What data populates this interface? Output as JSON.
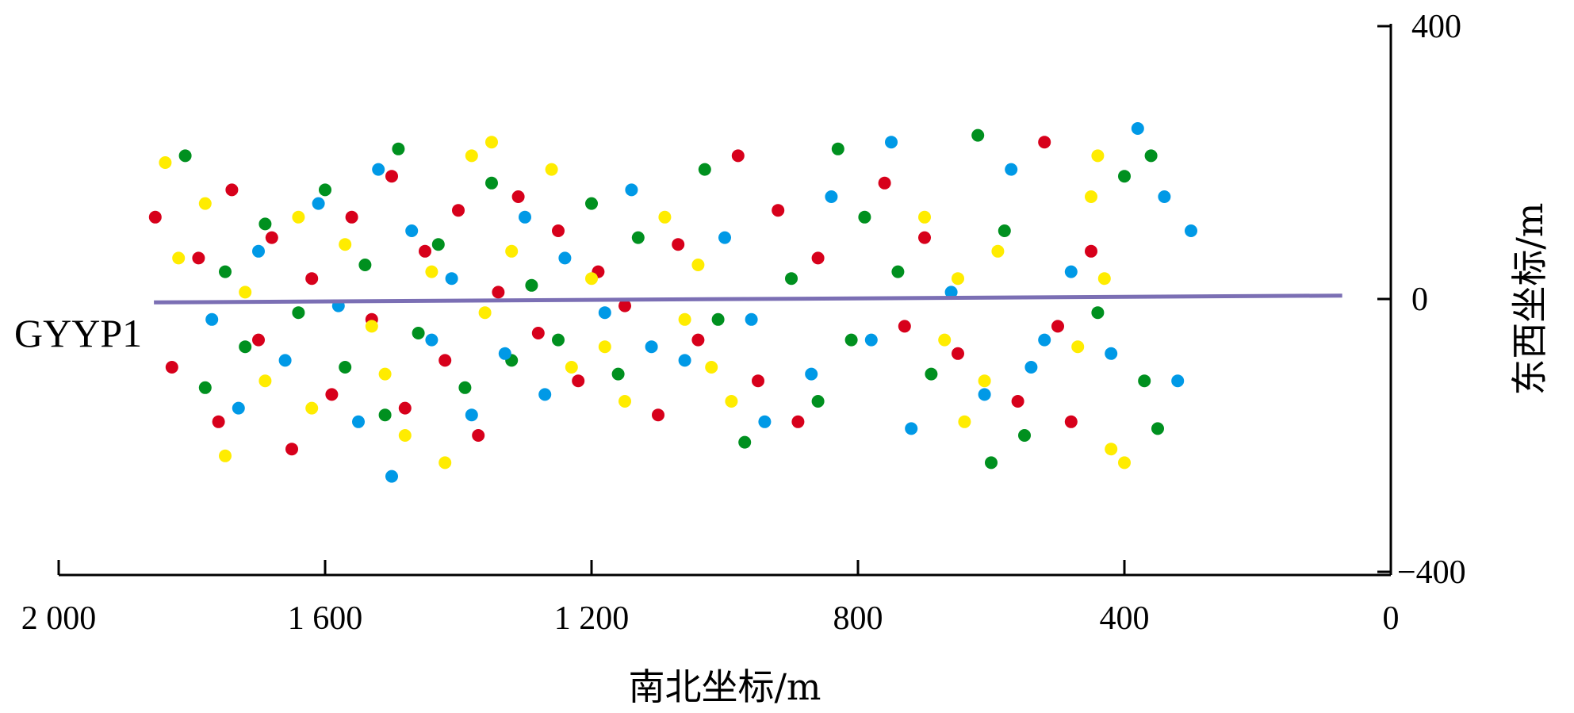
{
  "chart_data": {
    "type": "scatter",
    "title": "",
    "xlabel": "南北坐标/m",
    "ylabel": "东西坐标/m",
    "xlim": [
      2000,
      0
    ],
    "ylim": [
      -400,
      400
    ],
    "x_ticks": [
      "2 000",
      "1 600",
      "1 200",
      "800",
      "400",
      "0"
    ],
    "x_tick_values": [
      2000,
      1600,
      1200,
      800,
      400,
      0
    ],
    "y_ticks": [
      "400",
      "0",
      "−400"
    ],
    "y_tick_values": [
      400,
      0,
      -400
    ],
    "grid": false,
    "well": {
      "label": "GYYP1",
      "color": "#7b6fb4",
      "x": [
        1857,
        73
      ],
      "y": [
        -5,
        5
      ]
    },
    "series": [
      {
        "name": "red",
        "color": "#d7001b",
        "points": [
          [
            1855,
            120
          ],
          [
            1830,
            -100
          ],
          [
            1790,
            60
          ],
          [
            1760,
            -180
          ],
          [
            1740,
            160
          ],
          [
            1700,
            -60
          ],
          [
            1680,
            90
          ],
          [
            1650,
            -220
          ],
          [
            1620,
            30
          ],
          [
            1590,
            -140
          ],
          [
            1560,
            120
          ],
          [
            1530,
            -30
          ],
          [
            1500,
            180
          ],
          [
            1480,
            -160
          ],
          [
            1450,
            70
          ],
          [
            1420,
            -90
          ],
          [
            1400,
            130
          ],
          [
            1370,
            -200
          ],
          [
            1340,
            10
          ],
          [
            1310,
            150
          ],
          [
            1280,
            -50
          ],
          [
            1250,
            100
          ],
          [
            1220,
            -120
          ],
          [
            1190,
            40
          ],
          [
            1150,
            -10
          ],
          [
            1100,
            -170
          ],
          [
            1070,
            80
          ],
          [
            1040,
            -60
          ],
          [
            980,
            210
          ],
          [
            950,
            -120
          ],
          [
            920,
            130
          ],
          [
            890,
            -180
          ],
          [
            860,
            60
          ],
          [
            760,
            170
          ],
          [
            730,
            -40
          ],
          [
            700,
            90
          ],
          [
            650,
            -80
          ],
          [
            560,
            -150
          ],
          [
            520,
            230
          ],
          [
            480,
            -180
          ],
          [
            450,
            70
          ],
          [
            500,
            -40
          ]
        ]
      },
      {
        "name": "green",
        "color": "#00901f",
        "points": [
          [
            1810,
            210
          ],
          [
            1780,
            -130
          ],
          [
            1750,
            40
          ],
          [
            1720,
            -70
          ],
          [
            1690,
            110
          ],
          [
            1640,
            -20
          ],
          [
            1600,
            160
          ],
          [
            1570,
            -100
          ],
          [
            1540,
            50
          ],
          [
            1510,
            -170
          ],
          [
            1490,
            220
          ],
          [
            1460,
            -50
          ],
          [
            1430,
            80
          ],
          [
            1390,
            -130
          ],
          [
            1350,
            170
          ],
          [
            1320,
            -90
          ],
          [
            1290,
            20
          ],
          [
            1250,
            -60
          ],
          [
            1200,
            140
          ],
          [
            1160,
            -110
          ],
          [
            1130,
            90
          ],
          [
            1030,
            190
          ],
          [
            1010,
            -30
          ],
          [
            970,
            -210
          ],
          [
            900,
            30
          ],
          [
            860,
            -150
          ],
          [
            830,
            220
          ],
          [
            810,
            -60
          ],
          [
            790,
            120
          ],
          [
            740,
            40
          ],
          [
            690,
            -110
          ],
          [
            620,
            240
          ],
          [
            600,
            -240
          ],
          [
            580,
            100
          ],
          [
            550,
            -200
          ],
          [
            440,
            -20
          ],
          [
            400,
            180
          ],
          [
            370,
            -120
          ],
          [
            350,
            -190
          ],
          [
            360,
            210
          ]
        ]
      },
      {
        "name": "blue",
        "color": "#0099e6",
        "points": [
          [
            1770,
            -30
          ],
          [
            1730,
            -160
          ],
          [
            1700,
            70
          ],
          [
            1660,
            -90
          ],
          [
            1610,
            140
          ],
          [
            1580,
            -10
          ],
          [
            1550,
            -180
          ],
          [
            1520,
            190
          ],
          [
            1500,
            -260
          ],
          [
            1470,
            100
          ],
          [
            1440,
            -60
          ],
          [
            1410,
            30
          ],
          [
            1380,
            -170
          ],
          [
            1330,
            -80
          ],
          [
            1300,
            120
          ],
          [
            1270,
            -140
          ],
          [
            1240,
            60
          ],
          [
            1180,
            -20
          ],
          [
            1140,
            160
          ],
          [
            1110,
            -70
          ],
          [
            1060,
            -90
          ],
          [
            1000,
            90
          ],
          [
            960,
            -30
          ],
          [
            940,
            -180
          ],
          [
            870,
            -110
          ],
          [
            840,
            150
          ],
          [
            780,
            -60
          ],
          [
            750,
            230
          ],
          [
            720,
            -190
          ],
          [
            660,
            10
          ],
          [
            610,
            -140
          ],
          [
            570,
            190
          ],
          [
            540,
            -100
          ],
          [
            520,
            -60
          ],
          [
            480,
            40
          ],
          [
            420,
            -80
          ],
          [
            380,
            250
          ],
          [
            340,
            150
          ],
          [
            320,
            -120
          ],
          [
            300,
            100
          ]
        ]
      },
      {
        "name": "yellow",
        "color": "#ffec00",
        "points": [
          [
            1840,
            200
          ],
          [
            1820,
            60
          ],
          [
            1780,
            140
          ],
          [
            1750,
            -230
          ],
          [
            1720,
            10
          ],
          [
            1690,
            -120
          ],
          [
            1640,
            120
          ],
          [
            1620,
            -160
          ],
          [
            1570,
            80
          ],
          [
            1530,
            -40
          ],
          [
            1510,
            -110
          ],
          [
            1480,
            -200
          ],
          [
            1440,
            40
          ],
          [
            1420,
            -240
          ],
          [
            1380,
            210
          ],
          [
            1360,
            -20
          ],
          [
            1350,
            230
          ],
          [
            1320,
            70
          ],
          [
            1260,
            190
          ],
          [
            1230,
            -100
          ],
          [
            1200,
            30
          ],
          [
            1180,
            -70
          ],
          [
            1150,
            -150
          ],
          [
            1090,
            120
          ],
          [
            1060,
            -30
          ],
          [
            1040,
            50
          ],
          [
            1020,
            -100
          ],
          [
            990,
            -150
          ],
          [
            700,
            120
          ],
          [
            670,
            -60
          ],
          [
            650,
            30
          ],
          [
            640,
            -180
          ],
          [
            610,
            -120
          ],
          [
            590,
            70
          ],
          [
            470,
            -70
          ],
          [
            450,
            150
          ],
          [
            430,
            30
          ],
          [
            420,
            -220
          ],
          [
            400,
            -240
          ],
          [
            440,
            210
          ]
        ]
      }
    ]
  }
}
